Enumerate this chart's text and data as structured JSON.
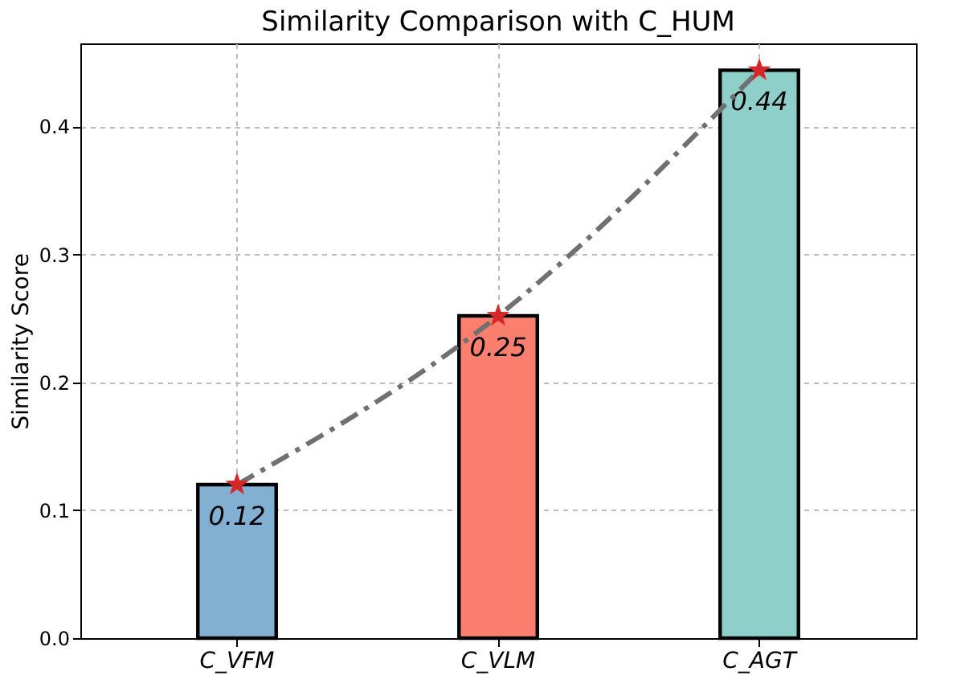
{
  "chart_data": {
    "type": "bar",
    "title": "Similarity Comparison with C_HUM",
    "ylabel": "Similarity Score",
    "categories": [
      "C_VFM",
      "C_VLM",
      "C_AGT"
    ],
    "series": [
      {
        "colors": [
          "#82b0d2",
          "#fa7f6f",
          "#8ecfc9"
        ],
        "values": [
          0.12,
          0.252,
          0.444
        ],
        "value_labels": [
          "0.12",
          "0.25",
          "0.44"
        ]
      },
      {
        "type": "line",
        "color": "#707070",
        "values": [
          0.12,
          0.252,
          0.444
        ],
        "line_style": "dashed",
        "marker": "none"
      },
      {
        "type": "scatter",
        "color": "#d62728",
        "values": [
          0.12,
          0.252,
          0.444
        ],
        "marker": "star"
      }
    ],
    "ylim": [
      0,
      0.465
    ],
    "yticks": [
      {
        "value": 0,
        "label": "0.0"
      },
      0.1,
      0.2,
      0.3,
      0.4
    ],
    "grid": true
  }
}
